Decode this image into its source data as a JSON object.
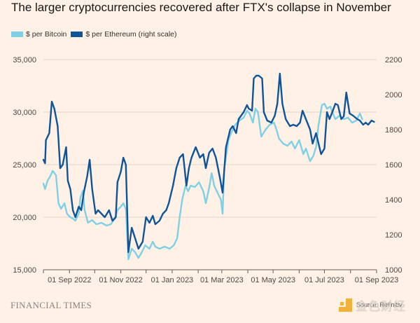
{
  "header": {
    "title": "The larger cryptocurrencies recovered after FTX's collapse in November"
  },
  "legend": [
    {
      "label": "$ per Bitcoin",
      "color": "#7fd0e6"
    },
    {
      "label": "$ per Ethereum (right scale)",
      "color": "#0f5499"
    }
  ],
  "footer": {
    "brand": "FINANCIAL TIMES",
    "source": "Source: Refinitiv",
    "watermark": "金色财经"
  },
  "chart_data": {
    "type": "line",
    "title": "The larger cryptocurrencies recovered after FTX's collapse in November",
    "xlabel": "",
    "ylabel_left": "$ per Bitcoin",
    "ylabel_right": "$ per Ethereum (right scale)",
    "xlim": [
      "2022-08-01",
      "2023-09-01"
    ],
    "ylim_left": [
      15000,
      35000
    ],
    "ylim_right": [
      1000,
      2200
    ],
    "yticks_left": [
      "35,000",
      "30,000",
      "25,000",
      "20,000",
      "15,000"
    ],
    "yticks_left_values": [
      35000,
      30000,
      25000,
      20000,
      15000
    ],
    "yticks_right": [
      "2200",
      "2000",
      "1800",
      "1600",
      "1400",
      "1200",
      "1000"
    ],
    "yticks_right_values": [
      2200,
      2000,
      1800,
      1600,
      1400,
      1200,
      1000
    ],
    "xticks": [
      "01 Sep 2022",
      "01 Nov 2022",
      "01 Jan 2023",
      "01 Mar 2023",
      "01 May 2023",
      "01 Jul 2023",
      "01 Sep 2023"
    ],
    "xticks_all_months": [
      "2022-08-01",
      "2022-09-01",
      "2022-10-01",
      "2022-11-01",
      "2022-12-01",
      "2023-01-01",
      "2023-02-01",
      "2023-03-01",
      "2023-04-01",
      "2023-05-01",
      "2023-06-01",
      "2023-07-01",
      "2023-08-01",
      "2023-09-01"
    ],
    "xtick_label_dates": [
      "2022-09-01",
      "2022-11-01",
      "2023-01-01",
      "2023-03-01",
      "2023-05-01",
      "2023-07-01",
      "2023-09-01"
    ],
    "grid": true,
    "legend_position": "top-left",
    "series": [
      {
        "name": "$ per Bitcoin",
        "axis": "left",
        "color": "#7fd0e6",
        "points": [
          [
            "2022-08-01",
            23200
          ],
          [
            "2022-08-03",
            22670
          ],
          [
            "2022-08-06",
            23470
          ],
          [
            "2022-08-09",
            23870
          ],
          [
            "2022-08-12",
            24400
          ],
          [
            "2022-08-16",
            24000
          ],
          [
            "2022-08-19",
            21330
          ],
          [
            "2022-08-22",
            20800
          ],
          [
            "2022-08-26",
            21330
          ],
          [
            "2022-08-29",
            20330
          ],
          [
            "2022-09-02",
            20000
          ],
          [
            "2022-09-05",
            19870
          ],
          [
            "2022-09-08",
            19670
          ],
          [
            "2022-09-12",
            20330
          ],
          [
            "2022-09-14",
            21870
          ],
          [
            "2022-09-17",
            22530
          ],
          [
            "2022-09-19",
            20670
          ],
          [
            "2022-09-23",
            19470
          ],
          [
            "2022-09-28",
            19730
          ],
          [
            "2022-10-03",
            19330
          ],
          [
            "2022-10-09",
            19470
          ],
          [
            "2022-10-15",
            19200
          ],
          [
            "2022-10-20",
            19330
          ],
          [
            "2022-10-25",
            19870
          ],
          [
            "2022-10-28",
            20670
          ],
          [
            "2022-11-01",
            21000
          ],
          [
            "2022-11-04",
            21330
          ],
          [
            "2022-11-07",
            20800
          ],
          [
            "2022-11-10",
            16000
          ],
          [
            "2022-11-14",
            17000
          ],
          [
            "2022-11-18",
            16670
          ],
          [
            "2022-11-22",
            16130
          ],
          [
            "2022-11-26",
            16670
          ],
          [
            "2022-11-30",
            17330
          ],
          [
            "2022-12-05",
            17000
          ],
          [
            "2022-12-09",
            17670
          ],
          [
            "2022-12-12",
            17200
          ],
          [
            "2022-12-17",
            17000
          ],
          [
            "2022-12-23",
            17200
          ],
          [
            "2022-12-29",
            17000
          ],
          [
            "2023-01-03",
            17330
          ],
          [
            "2023-01-07",
            18000
          ],
          [
            "2023-01-10",
            20000
          ],
          [
            "2023-01-13",
            21670
          ],
          [
            "2023-01-17",
            23000
          ],
          [
            "2023-01-20",
            22470
          ],
          [
            "2023-01-23",
            23000
          ],
          [
            "2023-01-28",
            22870
          ],
          [
            "2023-02-02",
            23330
          ],
          [
            "2023-02-07",
            22470
          ],
          [
            "2023-02-10",
            21330
          ],
          [
            "2023-02-14",
            22800
          ],
          [
            "2023-02-17",
            24200
          ],
          [
            "2023-02-20",
            23000
          ],
          [
            "2023-02-24",
            22330
          ],
          [
            "2023-02-28",
            21670
          ],
          [
            "2023-03-02",
            20330
          ],
          [
            "2023-03-04",
            24670
          ],
          [
            "2023-03-09",
            27330
          ],
          [
            "2023-03-12",
            28000
          ],
          [
            "2023-03-17",
            28800
          ],
          [
            "2023-03-22",
            29200
          ],
          [
            "2023-03-27",
            29470
          ],
          [
            "2023-03-31",
            30130
          ],
          [
            "2023-04-03",
            29870
          ],
          [
            "2023-04-07",
            29000
          ],
          [
            "2023-04-10",
            30330
          ],
          [
            "2023-04-13",
            30000
          ],
          [
            "2023-04-17",
            27670
          ],
          [
            "2023-04-22",
            28330
          ],
          [
            "2023-04-27",
            28800
          ],
          [
            "2023-05-02",
            29000
          ],
          [
            "2023-05-05",
            28330
          ],
          [
            "2023-05-08",
            27470
          ],
          [
            "2023-05-13",
            27000
          ],
          [
            "2023-05-18",
            26800
          ],
          [
            "2023-05-23",
            27200
          ],
          [
            "2023-05-27",
            26530
          ],
          [
            "2023-06-01",
            27330
          ],
          [
            "2023-06-06",
            26000
          ],
          [
            "2023-06-09",
            26530
          ],
          [
            "2023-06-14",
            25330
          ],
          [
            "2023-06-18",
            25870
          ],
          [
            "2023-06-21",
            26670
          ],
          [
            "2023-06-24",
            28800
          ],
          [
            "2023-06-28",
            30670
          ],
          [
            "2023-07-01",
            30800
          ],
          [
            "2023-07-04",
            30330
          ],
          [
            "2023-07-08",
            30530
          ],
          [
            "2023-07-11",
            29870
          ],
          [
            "2023-07-14",
            29330
          ],
          [
            "2023-07-19",
            29670
          ],
          [
            "2023-07-24",
            29330
          ],
          [
            "2023-07-29",
            29470
          ],
          [
            "2023-08-03",
            29000
          ],
          [
            "2023-08-08",
            29200
          ],
          [
            "2023-08-12",
            29870
          ],
          [
            "2023-08-15",
            29330
          ]
        ]
      },
      {
        "name": "$ per Ethereum (right scale)",
        "axis": "right",
        "color": "#0f5499",
        "points": [
          [
            "2022-08-01",
            1628
          ],
          [
            "2022-08-03",
            1608
          ],
          [
            "2022-08-04",
            1740
          ],
          [
            "2022-08-08",
            1780
          ],
          [
            "2022-08-11",
            1960
          ],
          [
            "2022-08-14",
            1920
          ],
          [
            "2022-08-18",
            1820
          ],
          [
            "2022-08-21",
            1580
          ],
          [
            "2022-08-24",
            1600
          ],
          [
            "2022-08-28",
            1700
          ],
          [
            "2022-08-30",
            1508
          ],
          [
            "2022-09-02",
            1460
          ],
          [
            "2022-09-05",
            1340
          ],
          [
            "2022-09-08",
            1300
          ],
          [
            "2022-09-12",
            1360
          ],
          [
            "2022-09-15",
            1340
          ],
          [
            "2022-09-18",
            1440
          ],
          [
            "2022-09-22",
            1532
          ],
          [
            "2022-09-25",
            1628
          ],
          [
            "2022-09-28",
            1460
          ],
          [
            "2022-10-02",
            1320
          ],
          [
            "2022-10-05",
            1340
          ],
          [
            "2022-10-09",
            1320
          ],
          [
            "2022-10-13",
            1300
          ],
          [
            "2022-10-18",
            1340
          ],
          [
            "2022-10-22",
            1280
          ],
          [
            "2022-10-26",
            1300
          ],
          [
            "2022-10-28",
            1500
          ],
          [
            "2022-11-01",
            1560
          ],
          [
            "2022-11-04",
            1640
          ],
          [
            "2022-11-07",
            1600
          ],
          [
            "2022-11-10",
            1100
          ],
          [
            "2022-11-14",
            1240
          ],
          [
            "2022-11-18",
            1180
          ],
          [
            "2022-11-22",
            1120
          ],
          [
            "2022-11-27",
            1160
          ],
          [
            "2022-12-01",
            1300
          ],
          [
            "2022-12-05",
            1268
          ],
          [
            "2022-12-09",
            1308
          ],
          [
            "2022-12-12",
            1260
          ],
          [
            "2022-12-17",
            1280
          ],
          [
            "2022-12-21",
            1320
          ],
          [
            "2022-12-25",
            1340
          ],
          [
            "2022-12-28",
            1380
          ],
          [
            "2023-01-02",
            1480
          ],
          [
            "2023-01-06",
            1580
          ],
          [
            "2023-01-10",
            1640
          ],
          [
            "2023-01-14",
            1660
          ],
          [
            "2023-01-18",
            1480
          ],
          [
            "2023-01-21",
            1580
          ],
          [
            "2023-01-24",
            1640
          ],
          [
            "2023-01-29",
            1700
          ],
          [
            "2023-02-03",
            1640
          ],
          [
            "2023-02-07",
            1660
          ],
          [
            "2023-02-10",
            1580
          ],
          [
            "2023-02-14",
            1668
          ],
          [
            "2023-02-18",
            1692
          ],
          [
            "2023-02-22",
            1640
          ],
          [
            "2023-02-27",
            1520
          ],
          [
            "2023-03-02",
            1440
          ],
          [
            "2023-03-06",
            1700
          ],
          [
            "2023-03-11",
            1800
          ],
          [
            "2023-03-14",
            1820
          ],
          [
            "2023-03-18",
            1780
          ],
          [
            "2023-03-21",
            1860
          ],
          [
            "2023-03-24",
            1880
          ],
          [
            "2023-03-27",
            1900
          ],
          [
            "2023-03-31",
            1940
          ],
          [
            "2023-04-02",
            1920
          ],
          [
            "2023-04-06",
            1908
          ],
          [
            "2023-04-08",
            2092
          ],
          [
            "2023-04-11",
            2108
          ],
          [
            "2023-04-14",
            2108
          ],
          [
            "2023-04-18",
            2092
          ],
          [
            "2023-04-20",
            1900
          ],
          [
            "2023-04-24",
            1852
          ],
          [
            "2023-04-29",
            1840
          ],
          [
            "2023-05-03",
            1880
          ],
          [
            "2023-05-06",
            1948
          ],
          [
            "2023-05-09",
            2120
          ],
          [
            "2023-05-12",
            1948
          ],
          [
            "2023-05-16",
            1860
          ],
          [
            "2023-05-21",
            1820
          ],
          [
            "2023-05-25",
            1828
          ],
          [
            "2023-05-29",
            1820
          ],
          [
            "2023-06-02",
            1840
          ],
          [
            "2023-06-05",
            1908
          ],
          [
            "2023-06-09",
            1860
          ],
          [
            "2023-06-14",
            1800
          ],
          [
            "2023-06-17",
            1720
          ],
          [
            "2023-06-21",
            1780
          ],
          [
            "2023-06-24",
            1720
          ],
          [
            "2023-06-27",
            1660
          ],
          [
            "2023-07-01",
            1692
          ],
          [
            "2023-07-04",
            1900
          ],
          [
            "2023-07-07",
            1860
          ],
          [
            "2023-07-11",
            1908
          ],
          [
            "2023-07-14",
            1948
          ],
          [
            "2023-07-17",
            1940
          ],
          [
            "2023-07-21",
            1860
          ],
          [
            "2023-07-24",
            1876
          ],
          [
            "2023-07-27",
            2012
          ],
          [
            "2023-07-31",
            1892
          ],
          [
            "2023-08-04",
            1880
          ],
          [
            "2023-08-09",
            1860
          ],
          [
            "2023-08-12",
            1852
          ],
          [
            "2023-08-16",
            1828
          ],
          [
            "2023-08-19",
            1840
          ],
          [
            "2023-08-22",
            1828
          ],
          [
            "2023-08-26",
            1852
          ],
          [
            "2023-08-29",
            1844
          ]
        ]
      }
    ]
  }
}
